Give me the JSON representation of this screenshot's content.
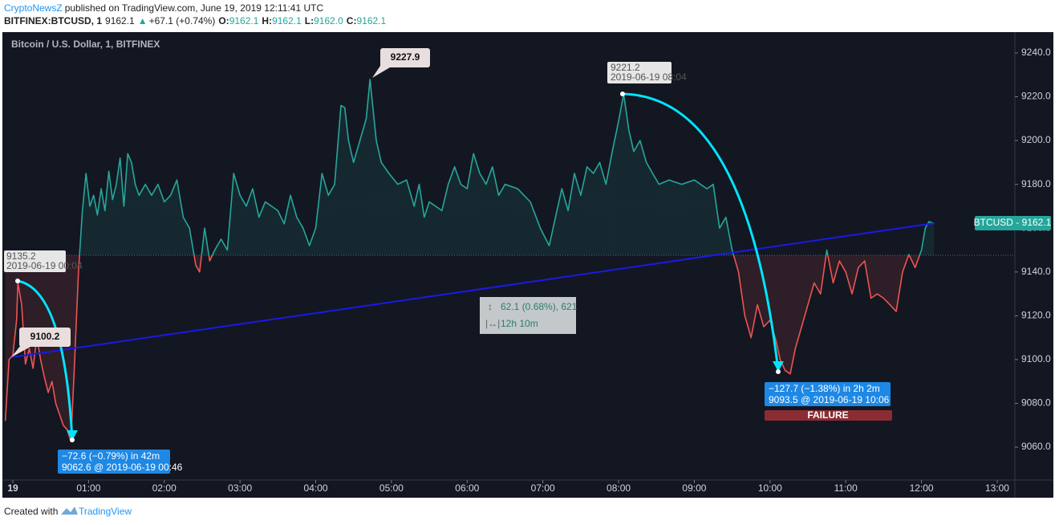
{
  "header": {
    "author": "CryptoNewsZ",
    "published": "published on TradingView.com, June 19, 2019 12:11:41 UTC",
    "symbol": "BITFINEX:BTCUSD, 1",
    "last": "9162.1",
    "change": "+67.1 (+0.74%)",
    "o_label": "O:",
    "o": "9162.1",
    "h_label": "H:",
    "h": "9162.1",
    "l_label": "L:",
    "l": "9162.0",
    "c_label": "C:",
    "c": "9162.1"
  },
  "chart_data": {
    "type": "line",
    "title": "Bitcoin / U.S. Dollar, 1, BITFINEX",
    "x": [
      -6,
      -3,
      0,
      3,
      4,
      7,
      10,
      13,
      16,
      19,
      22,
      25,
      28,
      31,
      34,
      37,
      40,
      43,
      46,
      49,
      52,
      55,
      58,
      61,
      64,
      67,
      70,
      73,
      76,
      79,
      82,
      85,
      88,
      91,
      94,
      97,
      100,
      105,
      110,
      115,
      120,
      125,
      130,
      135,
      140,
      145,
      148,
      152,
      156,
      160,
      165,
      170,
      175,
      180,
      185,
      190,
      195,
      200,
      205,
      210,
      215,
      220,
      225,
      230,
      235,
      240,
      245,
      250,
      255,
      260,
      263,
      266,
      270,
      275,
      280,
      283,
      288,
      292,
      298,
      305,
      312,
      318,
      322,
      326,
      330,
      335,
      340,
      345,
      350,
      355,
      360,
      365,
      370,
      375,
      380,
      385,
      390,
      400,
      410,
      418,
      425,
      430,
      435,
      440,
      445,
      450,
      455,
      460,
      465,
      470,
      475,
      480,
      484,
      488,
      492,
      497,
      502,
      507,
      512,
      520,
      530,
      540,
      550,
      555,
      560,
      565,
      570,
      575,
      580,
      585,
      590,
      595,
      600,
      605,
      608,
      612,
      616,
      620,
      625,
      630,
      635,
      640,
      645,
      650,
      655,
      660,
      665,
      670,
      675,
      680,
      685,
      690,
      695,
      700,
      705,
      710,
      715,
      720,
      723,
      726,
      730
    ],
    "values": [
      9072,
      9100,
      9102,
      9118,
      9135.2,
      9125,
      9098,
      9105,
      9096,
      9110,
      9100,
      9092,
      9085,
      9090,
      9080,
      9075,
      9070,
      9068,
      9062.6,
      9100,
      9140,
      9167,
      9185,
      9170,
      9175,
      9166,
      9178,
      9168,
      9186,
      9173,
      9180,
      9192,
      9170,
      9194,
      9190,
      9180,
      9175,
      9180,
      9175,
      9180,
      9172,
      9175,
      9182,
      9165,
      9160,
      9143,
      9140,
      9160,
      9145,
      9150,
      9155,
      9150,
      9185,
      9175,
      9170,
      9178,
      9165,
      9172,
      9170,
      9168,
      9162,
      9175,
      9165,
      9160,
      9152,
      9160,
      9185,
      9175,
      9180,
      9216,
      9215,
      9200,
      9190,
      9200,
      9210,
      9227.9,
      9200,
      9190,
      9185,
      9180,
      9182,
      9170,
      9180,
      9165,
      9172,
      9170,
      9168,
      9180,
      9188,
      9180,
      9178,
      9194,
      9185,
      9180,
      9188,
      9175,
      9180,
      9178,
      9172,
      9160,
      9152,
      9165,
      9178,
      9168,
      9185,
      9175,
      9188,
      9185,
      9190,
      9180,
      9195,
      9209,
      9221.2,
      9205,
      9195,
      9200,
      9190,
      9185,
      9180,
      9182,
      9180,
      9182,
      9178,
      9180,
      9160,
      9165,
      9150,
      9140,
      9120,
      9110,
      9125,
      9115,
      9118,
      9108,
      9100,
      9095,
      9093.5,
      9105,
      9115,
      9125,
      9135,
      9130,
      9150,
      9135,
      9145,
      9140,
      9130,
      9142,
      9145,
      9128,
      9130,
      9128,
      9125,
      9122,
      9140,
      9148,
      9142,
      9150,
      9160,
      9163,
      9162.1
    ],
    "up_color": "#26a69a",
    "down_color": "#ef5350",
    "baseline": 9147.6,
    "xlim": [
      -7,
      794
    ],
    "xticks": [
      {
        "value": 0,
        "label": "19"
      },
      {
        "value": 60,
        "label": "01:00"
      },
      {
        "value": 120,
        "label": "02:00"
      },
      {
        "value": 180,
        "label": "03:00"
      },
      {
        "value": 240,
        "label": "04:00"
      },
      {
        "value": 300,
        "label": "05:00"
      },
      {
        "value": 360,
        "label": "06:00"
      },
      {
        "value": 420,
        "label": "07:00"
      },
      {
        "value": 480,
        "label": "08:00"
      },
      {
        "value": 540,
        "label": "09:00"
      },
      {
        "value": 600,
        "label": "10:00"
      },
      {
        "value": 660,
        "label": "11:00"
      },
      {
        "value": 720,
        "label": "12:00"
      },
      {
        "value": 780,
        "label": "13:00"
      }
    ],
    "ylim": [
      9045,
      9249.5
    ],
    "yticks": [
      {
        "value": 9060,
        "label": "9060.0"
      },
      {
        "value": 9080,
        "label": "9080.0"
      },
      {
        "value": 9100,
        "label": "9100.0"
      },
      {
        "value": 9120,
        "label": "9120.0"
      },
      {
        "value": 9140,
        "label": "9140.0"
      },
      {
        "value": 9160,
        "label": "9160.0"
      },
      {
        "value": 9180,
        "label": "9180.0"
      },
      {
        "value": 9200,
        "label": "9200.0"
      },
      {
        "value": 9220,
        "label": "9220.0"
      },
      {
        "value": 9240,
        "label": "9240.0"
      }
    ],
    "grid": false
  },
  "annotations": {
    "high": "9227.9",
    "start": "9100.2",
    "peak1": "9135.2",
    "peak1_date": "2019-06-19 00:04",
    "peak2": "9221.2",
    "peak2_date": "2019-06-19 08:04",
    "drop1": "−72.6 (−0.79%) in 42m",
    "drop1_detail": "9062.6 @ 2019-06-19 00:46",
    "drop2": "−127.7 (−1.38%) in 2h 2m",
    "drop2_detail": "9093.5 @ 2019-06-19 10:06",
    "failure": "FAILURE",
    "range": "62.1 (0.68%), 621",
    "span": "12h 10m",
    "price_label": "BTCUSD - 9162.1"
  },
  "footer": {
    "created": "Created with",
    "brand": "TradingView"
  }
}
